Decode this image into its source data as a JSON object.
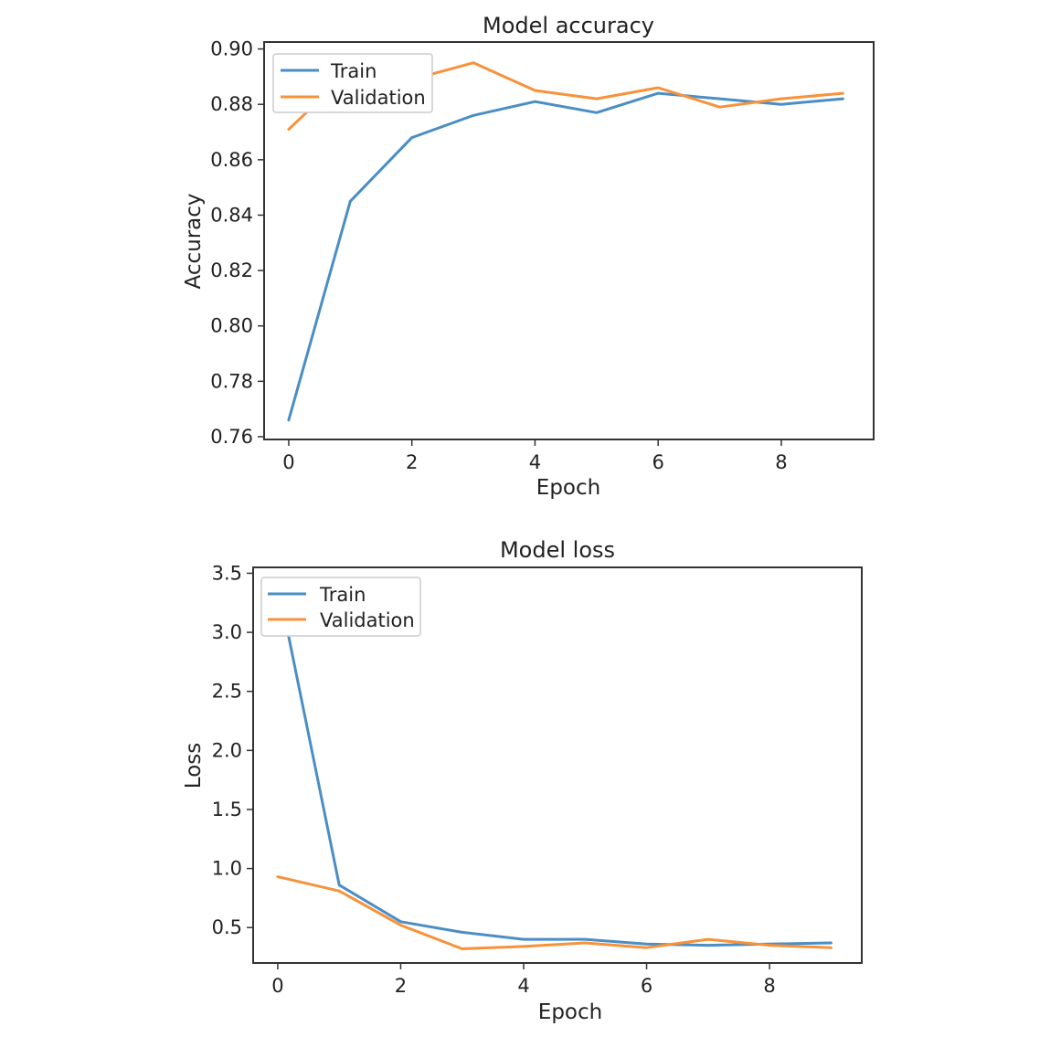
{
  "colors": {
    "train": "#4a8ec4",
    "validation": "#f7923a"
  },
  "chart_data": [
    {
      "type": "line",
      "title": "Model accuracy",
      "xlabel": "Epoch",
      "ylabel": "Accuracy",
      "x": [
        0,
        1,
        2,
        3,
        4,
        5,
        6,
        7,
        8,
        9
      ],
      "xlim": [
        -0.4,
        9.5
      ],
      "ylim": [
        0.759,
        0.9025
      ],
      "xticks": [
        0,
        2,
        4,
        6,
        8
      ],
      "xtick_labels": [
        "0",
        "2",
        "4",
        "6",
        "8"
      ],
      "yticks": [
        0.76,
        0.78,
        0.8,
        0.82,
        0.84,
        0.86,
        0.88,
        0.9
      ],
      "ytick_labels": [
        "0.76",
        "0.78",
        "0.80",
        "0.82",
        "0.84",
        "0.86",
        "0.88",
        "0.90"
      ],
      "legend_position": "upper-left",
      "grid": false,
      "series": [
        {
          "name": "Train",
          "color_key": "train",
          "values": [
            0.766,
            0.845,
            0.868,
            0.876,
            0.881,
            0.877,
            0.884,
            0.882,
            0.88,
            0.882
          ]
        },
        {
          "name": "Validation",
          "color_key": "validation",
          "values": [
            0.871,
            0.892,
            0.889,
            0.895,
            0.885,
            0.882,
            0.886,
            0.879,
            0.882,
            0.884
          ]
        }
      ]
    },
    {
      "type": "line",
      "title": "Model loss",
      "xlabel": "Epoch",
      "ylabel": "Loss",
      "x": [
        0,
        1,
        2,
        3,
        4,
        5,
        6,
        7,
        8,
        9
      ],
      "xlim": [
        -0.4,
        9.5
      ],
      "ylim": [
        0.2,
        3.55
      ],
      "xticks": [
        0,
        2,
        4,
        6,
        8
      ],
      "xtick_labels": [
        "0",
        "2",
        "4",
        "6",
        "8"
      ],
      "yticks": [
        0.5,
        1.0,
        1.5,
        2.0,
        2.5,
        3.0,
        3.5
      ],
      "ytick_labels": [
        "0.5",
        "1.0",
        "1.5",
        "2.0",
        "2.5",
        "3.0",
        "3.5"
      ],
      "legend_position": "upper-left",
      "grid": false,
      "series": [
        {
          "name": "Train",
          "color_key": "train",
          "values": [
            3.42,
            0.86,
            0.55,
            0.46,
            0.4,
            0.4,
            0.36,
            0.35,
            0.36,
            0.37
          ]
        },
        {
          "name": "Validation",
          "color_key": "validation",
          "values": [
            0.93,
            0.81,
            0.52,
            0.32,
            0.34,
            0.37,
            0.33,
            0.4,
            0.35,
            0.33
          ]
        }
      ]
    }
  ]
}
